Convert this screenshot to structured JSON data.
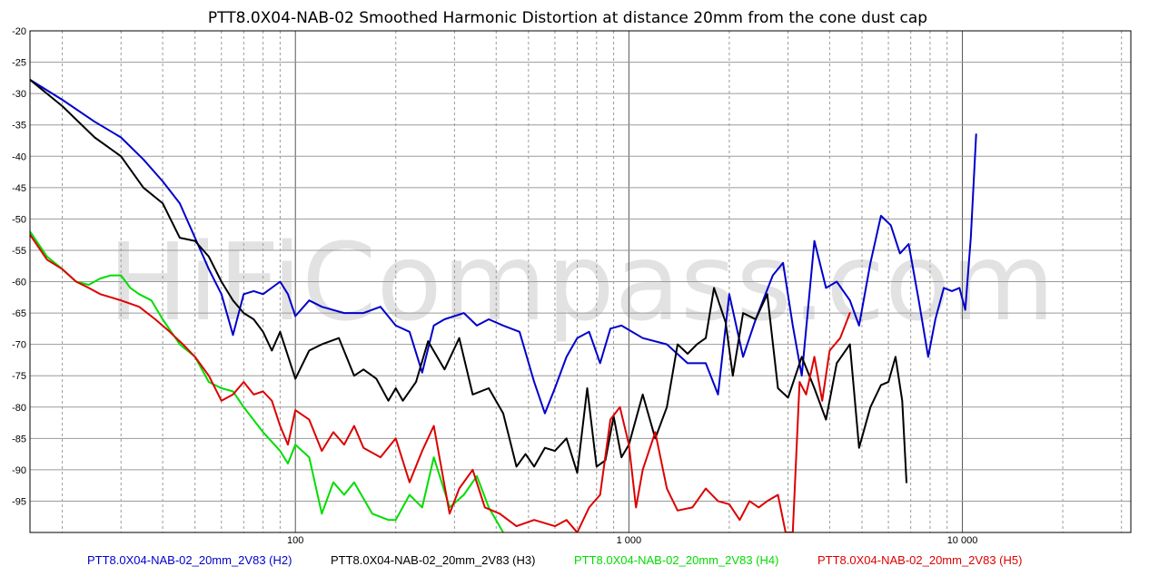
{
  "chart_data": {
    "type": "line",
    "title": "PTT8.0X04-NAB-02 Smoothed Harmonic Distortion at distance 20mm from the cone dust cap",
    "watermark": "HiFiCompass.com",
    "xlabel": "",
    "ylabel": "",
    "x_scale": "log",
    "xlim": [
      16,
      32000
    ],
    "ylim": [
      -100,
      -20
    ],
    "x_tick_labels": [
      {
        "value": 100,
        "label": "100"
      },
      {
        "value": 1000,
        "label": "1 000"
      },
      {
        "value": 10000,
        "label": "10 000"
      }
    ],
    "y_ticks": [
      -20,
      -25,
      -30,
      -35,
      -40,
      -45,
      -50,
      -55,
      -60,
      -65,
      -70,
      -75,
      -80,
      -85,
      -90,
      -95
    ],
    "grid": true,
    "legend_position": "bottom",
    "series": [
      {
        "name": "PTT8.0X04-NAB-02_20mm_2V83 (H2)",
        "color": "#0000cc",
        "points": [
          [
            16,
            -27.8
          ],
          [
            20,
            -31
          ],
          [
            25,
            -34.5
          ],
          [
            30,
            -37
          ],
          [
            35,
            -40.5
          ],
          [
            40,
            -44
          ],
          [
            45,
            -47.5
          ],
          [
            50,
            -53
          ],
          [
            55,
            -58
          ],
          [
            60,
            -62
          ],
          [
            65,
            -68.5
          ],
          [
            70,
            -62
          ],
          [
            75,
            -61.5
          ],
          [
            80,
            -62
          ],
          [
            90,
            -60
          ],
          [
            95,
            -62
          ],
          [
            100,
            -65.5
          ],
          [
            110,
            -63
          ],
          [
            120,
            -64
          ],
          [
            140,
            -65
          ],
          [
            160,
            -65
          ],
          [
            180,
            -64
          ],
          [
            200,
            -67
          ],
          [
            220,
            -68
          ],
          [
            240,
            -74.5
          ],
          [
            260,
            -67
          ],
          [
            280,
            -66
          ],
          [
            320,
            -65
          ],
          [
            350,
            -67
          ],
          [
            380,
            -66
          ],
          [
            420,
            -67
          ],
          [
            470,
            -68
          ],
          [
            520,
            -76
          ],
          [
            560,
            -81
          ],
          [
            600,
            -77
          ],
          [
            650,
            -72
          ],
          [
            700,
            -69
          ],
          [
            760,
            -68
          ],
          [
            820,
            -73
          ],
          [
            880,
            -67.5
          ],
          [
            950,
            -67
          ],
          [
            1100,
            -69
          ],
          [
            1300,
            -70
          ],
          [
            1500,
            -73
          ],
          [
            1700,
            -73
          ],
          [
            1850,
            -78
          ],
          [
            2000,
            -62
          ],
          [
            2200,
            -72
          ],
          [
            2400,
            -66
          ],
          [
            2700,
            -59
          ],
          [
            2900,
            -57
          ],
          [
            3100,
            -67
          ],
          [
            3300,
            -75
          ],
          [
            3600,
            -53.5
          ],
          [
            3900,
            -61
          ],
          [
            4200,
            -60
          ],
          [
            4600,
            -63
          ],
          [
            4900,
            -67
          ],
          [
            5300,
            -57
          ],
          [
            5700,
            -49.5
          ],
          [
            6100,
            -51
          ],
          [
            6500,
            -55.5
          ],
          [
            6900,
            -54
          ],
          [
            7400,
            -63
          ],
          [
            7900,
            -72
          ],
          [
            8300,
            -66
          ],
          [
            8800,
            -61
          ],
          [
            9300,
            -61.5
          ],
          [
            9800,
            -61
          ],
          [
            10200,
            -64.5
          ],
          [
            10600,
            -53
          ],
          [
            11000,
            -36.5
          ]
        ]
      },
      {
        "name": "PTT8.0X04-NAB-02_20mm_2V83 (H3)",
        "color": "#000000",
        "points": [
          [
            16,
            -27.8
          ],
          [
            20,
            -32
          ],
          [
            25,
            -37
          ],
          [
            30,
            -40
          ],
          [
            35,
            -45
          ],
          [
            40,
            -47.5
          ],
          [
            45,
            -53
          ],
          [
            50,
            -53.5
          ],
          [
            55,
            -56
          ],
          [
            60,
            -60
          ],
          [
            65,
            -63
          ],
          [
            70,
            -65
          ],
          [
            75,
            -66
          ],
          [
            80,
            -68
          ],
          [
            85,
            -71
          ],
          [
            90,
            -68
          ],
          [
            100,
            -75.5
          ],
          [
            110,
            -71
          ],
          [
            120,
            -70
          ],
          [
            135,
            -69
          ],
          [
            150,
            -75
          ],
          [
            160,
            -74
          ],
          [
            175,
            -75.5
          ],
          [
            190,
            -79
          ],
          [
            200,
            -77
          ],
          [
            210,
            -79
          ],
          [
            230,
            -76
          ],
          [
            250,
            -69.5
          ],
          [
            280,
            -74
          ],
          [
            310,
            -69
          ],
          [
            340,
            -78
          ],
          [
            380,
            -77
          ],
          [
            420,
            -81
          ],
          [
            460,
            -89.5
          ],
          [
            490,
            -87.5
          ],
          [
            520,
            -89.5
          ],
          [
            560,
            -86.5
          ],
          [
            600,
            -87
          ],
          [
            650,
            -85
          ],
          [
            700,
            -90.5
          ],
          [
            750,
            -77
          ],
          [
            800,
            -89.5
          ],
          [
            850,
            -88.5
          ],
          [
            900,
            -81.5
          ],
          [
            950,
            -88
          ],
          [
            1000,
            -86
          ],
          [
            1100,
            -78
          ],
          [
            1200,
            -85
          ],
          [
            1300,
            -80
          ],
          [
            1400,
            -70
          ],
          [
            1500,
            -71.5
          ],
          [
            1600,
            -70
          ],
          [
            1700,
            -69
          ],
          [
            1800,
            -61
          ],
          [
            1950,
            -66.5
          ],
          [
            2050,
            -75
          ],
          [
            2200,
            -65
          ],
          [
            2400,
            -66
          ],
          [
            2600,
            -62
          ],
          [
            2800,
            -77
          ],
          [
            3000,
            -78.5
          ],
          [
            3300,
            -72
          ],
          [
            3600,
            -77
          ],
          [
            3900,
            -82
          ],
          [
            4200,
            -73
          ],
          [
            4600,
            -70
          ],
          [
            4900,
            -86.5
          ],
          [
            5300,
            -80
          ],
          [
            5700,
            -76.5
          ],
          [
            6000,
            -76
          ],
          [
            6300,
            -72
          ],
          [
            6600,
            -79
          ],
          [
            6800,
            -92
          ]
        ]
      },
      {
        "name": "PTT8.0X04-NAB-02_20mm_2V83 (H4)",
        "color": "#00dd00",
        "points": [
          [
            16,
            -52
          ],
          [
            18,
            -56
          ],
          [
            20,
            -58
          ],
          [
            22,
            -60
          ],
          [
            24,
            -60.5
          ],
          [
            26,
            -59.5
          ],
          [
            28,
            -59
          ],
          [
            30,
            -59
          ],
          [
            32,
            -61
          ],
          [
            34,
            -62
          ],
          [
            37,
            -63
          ],
          [
            40,
            -66
          ],
          [
            45,
            -70
          ],
          [
            50,
            -72
          ],
          [
            55,
            -76
          ],
          [
            60,
            -77
          ],
          [
            65,
            -77.5
          ],
          [
            70,
            -80
          ],
          [
            80,
            -84
          ],
          [
            90,
            -87
          ],
          [
            95,
            -89
          ],
          [
            100,
            -86
          ],
          [
            110,
            -88
          ],
          [
            120,
            -97
          ],
          [
            130,
            -92
          ],
          [
            140,
            -94
          ],
          [
            150,
            -92
          ],
          [
            170,
            -97
          ],
          [
            190,
            -98
          ],
          [
            200,
            -98
          ],
          [
            220,
            -94
          ],
          [
            240,
            -96
          ],
          [
            260,
            -88
          ],
          [
            290,
            -96
          ],
          [
            320,
            -94
          ],
          [
            350,
            -91
          ],
          [
            380,
            -96
          ],
          [
            420,
            -100
          ]
        ]
      },
      {
        "name": "PTT8.0X04-NAB-02_20mm_2V83 (H5)",
        "color": "#dd0000",
        "points": [
          [
            16,
            -52.5
          ],
          [
            18,
            -56.5
          ],
          [
            20,
            -58
          ],
          [
            22,
            -60
          ],
          [
            24,
            -61
          ],
          [
            26,
            -62
          ],
          [
            28,
            -62.5
          ],
          [
            30,
            -63
          ],
          [
            34,
            -64
          ],
          [
            38,
            -66
          ],
          [
            42,
            -68
          ],
          [
            46,
            -70
          ],
          [
            50,
            -72
          ],
          [
            55,
            -75
          ],
          [
            60,
            -79
          ],
          [
            65,
            -78
          ],
          [
            70,
            -76
          ],
          [
            75,
            -78
          ],
          [
            80,
            -77.5
          ],
          [
            85,
            -79
          ],
          [
            90,
            -83
          ],
          [
            95,
            -86
          ],
          [
            100,
            -80.5
          ],
          [
            110,
            -82
          ],
          [
            120,
            -87
          ],
          [
            130,
            -84
          ],
          [
            140,
            -86
          ],
          [
            150,
            -83
          ],
          [
            160,
            -86.5
          ],
          [
            180,
            -88
          ],
          [
            200,
            -85
          ],
          [
            220,
            -92
          ],
          [
            240,
            -87
          ],
          [
            260,
            -83
          ],
          [
            290,
            -97
          ],
          [
            310,
            -93
          ],
          [
            340,
            -90
          ],
          [
            370,
            -96
          ],
          [
            410,
            -97
          ],
          [
            460,
            -99
          ],
          [
            520,
            -98
          ],
          [
            600,
            -99
          ],
          [
            650,
            -98
          ],
          [
            700,
            -100
          ],
          [
            760,
            -96
          ],
          [
            820,
            -94
          ],
          [
            880,
            -82
          ],
          [
            940,
            -80
          ],
          [
            1000,
            -86
          ],
          [
            1050,
            -96
          ],
          [
            1100,
            -90
          ],
          [
            1200,
            -84
          ],
          [
            1300,
            -93
          ],
          [
            1400,
            -96.5
          ],
          [
            1550,
            -96
          ],
          [
            1700,
            -93
          ],
          [
            1850,
            -95
          ],
          [
            2000,
            -95.5
          ],
          [
            2150,
            -98
          ],
          [
            2300,
            -95
          ],
          [
            2450,
            -96
          ],
          [
            2600,
            -95
          ],
          [
            2800,
            -94
          ],
          [
            2950,
            -100
          ],
          [
            3100,
            -100
          ],
          [
            3250,
            -76
          ],
          [
            3400,
            -78
          ],
          [
            3600,
            -72
          ],
          [
            3800,
            -79
          ],
          [
            4000,
            -71
          ],
          [
            4300,
            -69
          ],
          [
            4600,
            -65
          ]
        ]
      }
    ]
  }
}
